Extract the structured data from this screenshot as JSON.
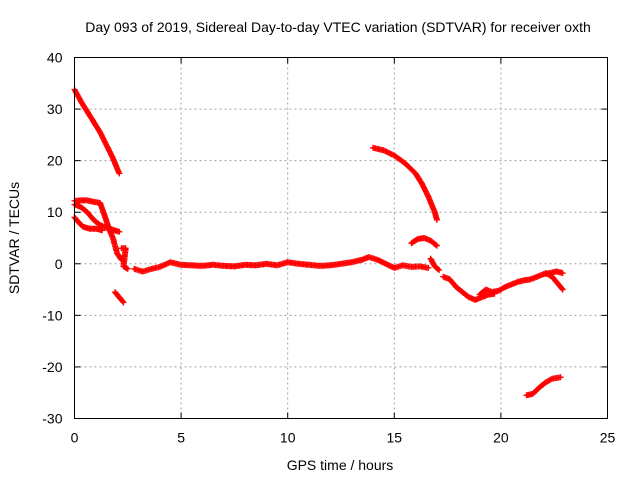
{
  "chart_data": {
    "type": "scatter",
    "title": "Day 093 of 2019, Sidereal Day-to-day VTEC variation (SDTVAR) for receiver oxth",
    "xlabel": "GPS time / hours",
    "ylabel": "SDTVAR / TECUs",
    "xlim": [
      0,
      25
    ],
    "ylim": [
      -30,
      40
    ],
    "xticks": [
      0,
      5,
      10,
      15,
      20,
      25
    ],
    "yticks": [
      -30,
      -20,
      -10,
      0,
      10,
      20,
      30,
      40
    ],
    "xtick_labels": [
      "0",
      "5",
      "10",
      "15",
      "20",
      "25"
    ],
    "ytick_labels": [
      "-30",
      "-20",
      "-10",
      "0",
      "10",
      "20",
      "30",
      "40"
    ],
    "grid": true,
    "marker": "+",
    "color": "#ff0000",
    "series": [
      {
        "name": "arc-1",
        "points": [
          [
            0.0,
            33.8
          ],
          [
            0.3,
            31.5
          ],
          [
            0.6,
            29.5
          ],
          [
            0.9,
            27.5
          ],
          [
            1.2,
            25.5
          ],
          [
            1.5,
            23.0
          ],
          [
            1.8,
            20.5
          ],
          [
            2.1,
            17.5
          ]
        ]
      },
      {
        "name": "arc-2",
        "points": [
          [
            0.0,
            12.2
          ],
          [
            0.3,
            12.3
          ],
          [
            0.6,
            12.3
          ],
          [
            0.9,
            12.0
          ],
          [
            1.2,
            11.8
          ],
          [
            1.4,
            9.5
          ],
          [
            1.6,
            7.0
          ],
          [
            1.8,
            5.0
          ],
          [
            2.0,
            2.0
          ],
          [
            2.2,
            0.8
          ]
        ]
      },
      {
        "name": "arc-3",
        "points": [
          [
            0.0,
            11.5
          ],
          [
            0.3,
            11.0
          ],
          [
            0.6,
            10.0
          ],
          [
            0.9,
            8.5
          ],
          [
            1.2,
            7.5
          ],
          [
            1.5,
            7.0
          ],
          [
            1.8,
            6.6
          ],
          [
            2.1,
            6.2
          ]
        ]
      },
      {
        "name": "arc-4",
        "points": [
          [
            0.0,
            9.0
          ],
          [
            0.2,
            8.0
          ],
          [
            0.4,
            7.2
          ],
          [
            0.7,
            6.8
          ],
          [
            1.0,
            6.8
          ],
          [
            1.3,
            6.5
          ]
        ]
      },
      {
        "name": "arc-5",
        "points": [
          [
            1.9,
            -5.5
          ],
          [
            2.1,
            -6.5
          ],
          [
            2.3,
            -7.5
          ]
        ]
      },
      {
        "name": "arc-6",
        "points": [
          [
            2.2,
            3.0
          ],
          [
            2.4,
            3.0
          ],
          [
            2.3,
            -0.5
          ],
          [
            2.5,
            -1.0
          ]
        ]
      },
      {
        "name": "arc-7",
        "points": [
          [
            2.8,
            -1.0
          ],
          [
            3.2,
            -1.5
          ],
          [
            3.6,
            -1.0
          ],
          [
            4.0,
            -0.6
          ],
          [
            4.5,
            0.3
          ],
          [
            5.0,
            -0.2
          ],
          [
            5.5,
            -0.3
          ],
          [
            6.0,
            -0.4
          ],
          [
            6.5,
            -0.2
          ],
          [
            7.0,
            -0.4
          ],
          [
            7.5,
            -0.5
          ],
          [
            8.0,
            -0.2
          ],
          [
            8.5,
            -0.3
          ],
          [
            9.0,
            0.0
          ],
          [
            9.5,
            -0.3
          ],
          [
            10.0,
            0.3
          ],
          [
            10.5,
            0.0
          ],
          [
            11.0,
            -0.2
          ],
          [
            11.5,
            -0.4
          ],
          [
            12.0,
            -0.3
          ],
          [
            12.5,
            0.0
          ],
          [
            13.0,
            0.3
          ],
          [
            13.5,
            0.8
          ],
          [
            13.8,
            1.3
          ],
          [
            14.2,
            0.8
          ],
          [
            14.6,
            0.0
          ],
          [
            15.0,
            -0.8
          ],
          [
            15.4,
            -0.3
          ],
          [
            15.8,
            -0.6
          ],
          [
            16.2,
            -0.5
          ],
          [
            16.6,
            -0.8
          ]
        ]
      },
      {
        "name": "arc-8",
        "points": [
          [
            14.0,
            22.5
          ],
          [
            14.5,
            22.0
          ],
          [
            15.0,
            21.0
          ],
          [
            15.5,
            19.5
          ],
          [
            16.0,
            17.5
          ],
          [
            16.3,
            15.5
          ],
          [
            16.6,
            13.0
          ],
          [
            16.9,
            10.0
          ],
          [
            17.0,
            8.5
          ]
        ]
      },
      {
        "name": "arc-9",
        "points": [
          [
            15.8,
            4.0
          ],
          [
            16.1,
            4.8
          ],
          [
            16.4,
            5.0
          ],
          [
            16.7,
            4.5
          ],
          [
            17.0,
            3.5
          ]
        ]
      },
      {
        "name": "arc-10",
        "points": [
          [
            16.7,
            1.0
          ],
          [
            16.9,
            -0.5
          ],
          [
            17.1,
            -1.2
          ]
        ]
      },
      {
        "name": "arc-11",
        "points": [
          [
            17.3,
            -2.5
          ],
          [
            17.6,
            -3.0
          ],
          [
            17.9,
            -4.5
          ],
          [
            18.2,
            -5.5
          ],
          [
            18.5,
            -6.5
          ],
          [
            18.8,
            -7.0
          ],
          [
            19.1,
            -6.5
          ],
          [
            19.4,
            -6.0
          ],
          [
            19.7,
            -5.8
          ]
        ]
      },
      {
        "name": "arc-12",
        "points": [
          [
            19.0,
            -6.0
          ],
          [
            19.3,
            -5.0
          ],
          [
            19.6,
            -5.5
          ],
          [
            19.9,
            -5.2
          ],
          [
            20.2,
            -4.5
          ],
          [
            20.5,
            -4.0
          ],
          [
            20.8,
            -3.5
          ],
          [
            21.1,
            -3.2
          ],
          [
            21.4,
            -3.0
          ],
          [
            21.7,
            -2.5
          ],
          [
            22.0,
            -2.0
          ],
          [
            22.3,
            -1.8
          ],
          [
            22.6,
            -1.5
          ],
          [
            22.9,
            -1.8
          ]
        ]
      },
      {
        "name": "arc-13",
        "points": [
          [
            22.1,
            -1.8
          ],
          [
            22.4,
            -2.5
          ],
          [
            22.7,
            -4.0
          ],
          [
            22.9,
            -5.0
          ]
        ]
      },
      {
        "name": "arc-14",
        "points": [
          [
            21.2,
            -25.5
          ],
          [
            21.5,
            -25.2
          ],
          [
            21.8,
            -24.0
          ],
          [
            22.1,
            -23.0
          ],
          [
            22.4,
            -22.3
          ],
          [
            22.8,
            -22.0
          ]
        ]
      }
    ]
  }
}
